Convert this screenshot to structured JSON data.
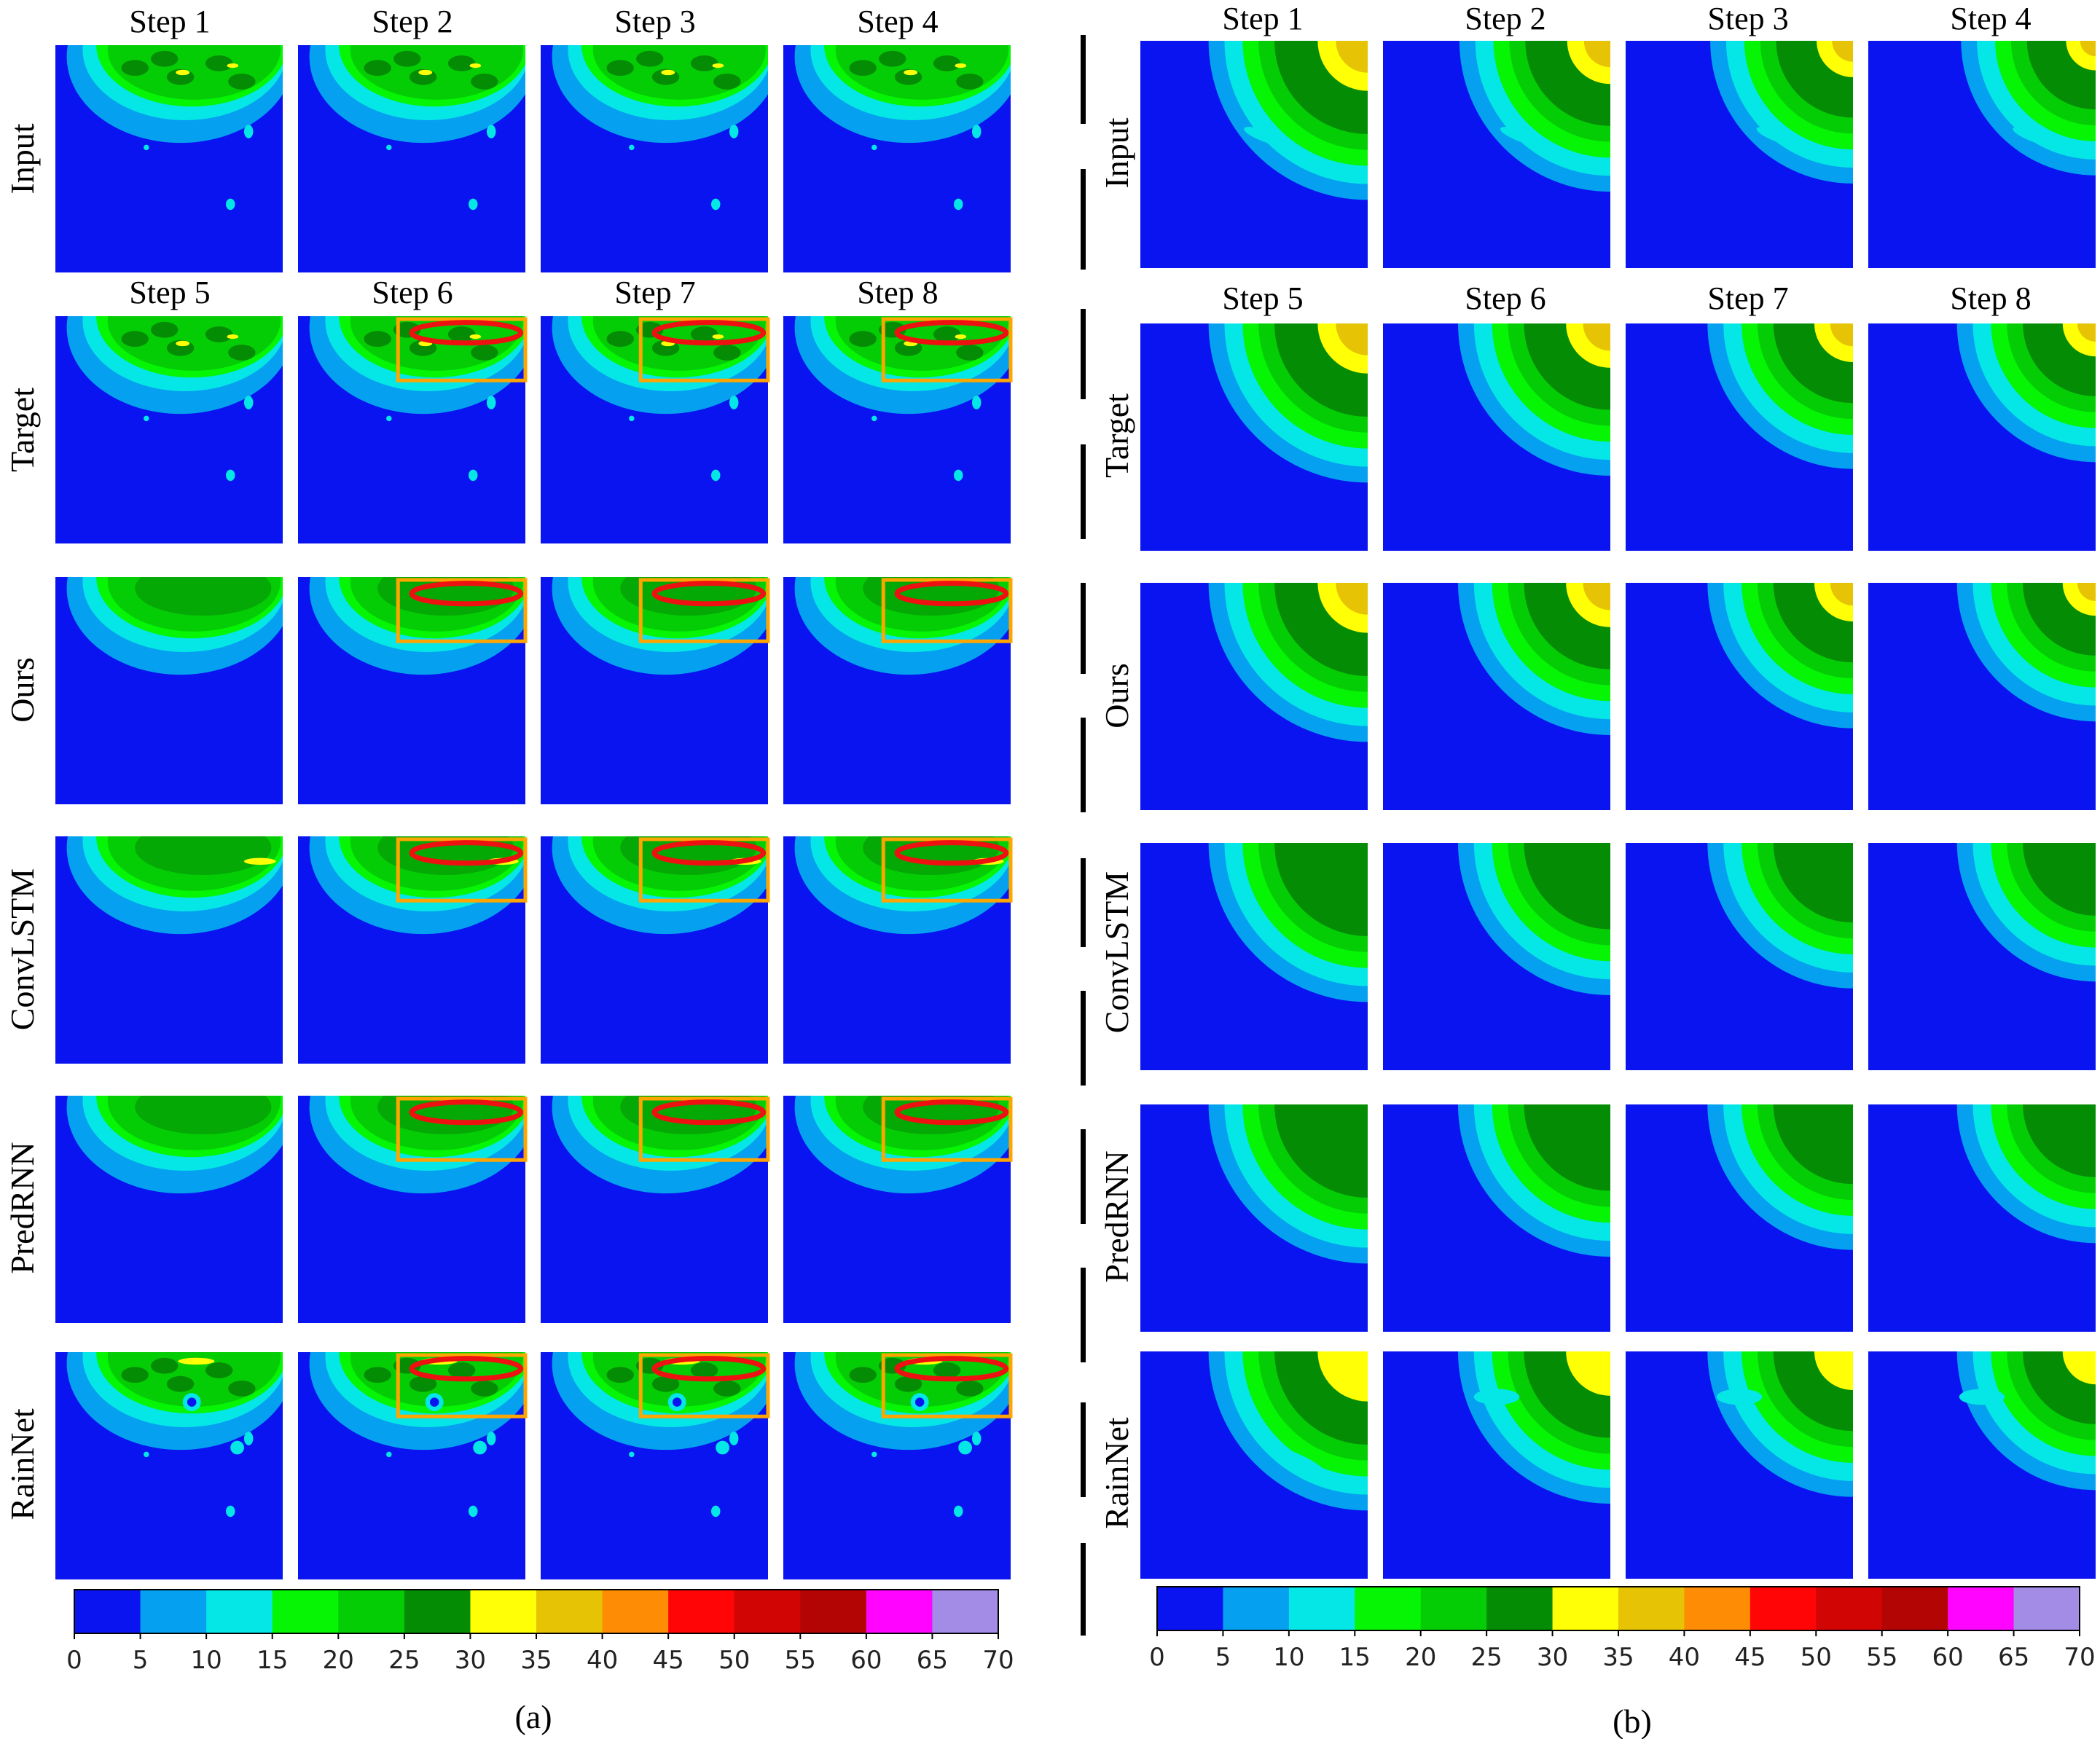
{
  "panel_a": {
    "caption": "(a)",
    "input_steps": [
      "Step 1",
      "Step 2",
      "Step 3",
      "Step 4"
    ],
    "output_steps": [
      "Step 5",
      "Step 6",
      "Step 7",
      "Step 8"
    ],
    "rows": [
      "Input",
      "Target",
      "Ours",
      "ConvLSTM",
      "PredRNN",
      "RainNet"
    ]
  },
  "panel_b": {
    "caption": "(b)",
    "input_steps": [
      "Step 1",
      "Step 2",
      "Step 3",
      "Step 4"
    ],
    "output_steps": [
      "Step 5",
      "Step 6",
      "Step 7",
      "Step 8"
    ],
    "rows": [
      "Input",
      "Target",
      "Ours",
      "ConvLSTM",
      "PredRNN",
      "RainNet"
    ]
  },
  "colorbar": {
    "ticks": [
      "0",
      "5",
      "10",
      "15",
      "20",
      "25",
      "30",
      "35",
      "40",
      "45",
      "50",
      "55",
      "60",
      "65",
      "70"
    ],
    "colors": [
      "#0a14f0",
      "#05a0f0",
      "#05e6e6",
      "#05f505",
      "#05cd05",
      "#058c05",
      "#ffff05",
      "#e6c305",
      "#ff8c05",
      "#ff0505",
      "#d20505",
      "#b40505",
      "#ff05ff",
      "#a38ce6"
    ]
  },
  "colors": {
    "background": "#0a14f0",
    "highlight_box": "#ffa500",
    "highlight_ellipse": "#ee1111"
  }
}
